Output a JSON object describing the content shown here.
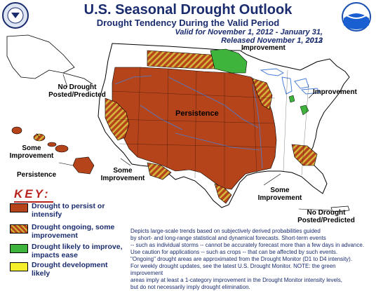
{
  "header": {
    "title": "U.S. Seasonal Drought Outlook",
    "subtitle": "Drought Tendency During the Valid Period",
    "valid_period": "Valid for November 1, 2012 - January 31, 2013",
    "released": "Released November 1, 2012"
  },
  "map_labels": {
    "improvement_north": "Improvement",
    "improvement_east": "Improvement",
    "persistence_center": "Persistence",
    "no_drought_alaska": [
      "No Drought",
      "Posted/Predicted"
    ],
    "some_improvement_hawaii": [
      "Some",
      "Improvement"
    ],
    "persistence_hawaii": "Persistence",
    "some_improvement_southwest": [
      "Some",
      "Improvement"
    ],
    "some_improvement_southeast": [
      "Some",
      "Improvement"
    ],
    "no_drought_puerto_rico": [
      "No Drought",
      "Posted/Predicted"
    ]
  },
  "key": {
    "title": "KEY:",
    "items": [
      {
        "label_lines": [
          "Drought to persist or",
          "intensify"
        ],
        "color": "#b5441a"
      },
      {
        "label_lines": [
          "Drought ongoing, some",
          "improvement"
        ],
        "color": "#b5441a",
        "stripe": "#d4b43a"
      },
      {
        "label_lines": [
          "Drought likely to improve,",
          "impacts ease"
        ],
        "color": "#3fb43c"
      },
      {
        "label_lines": [
          "Drought development",
          "likely"
        ],
        "color": "#f5ee2a"
      }
    ]
  },
  "disclaimer": {
    "lines": [
      "Depicts large-scale trends based on subjectively derived probabilities guided",
      "by short- and long-range statistical and dynamical forecasts. Short-term events",
      "-- such as individual storms -- cannot be accurately forecast more than a few days in advance.",
      "Use caution for applications -- such as crops -- that can be affected by such events.",
      "\"Ongoing\" drought areas are approximated from the Drought Monitor (D1 to D4 intensity).",
      "For weekly drought updates, see the latest U.S. Drought Monitor. NOTE: the green improvement",
      "areas imply at least a 1-category improvement in the Drought Monitor intensity levels,",
      "but do not necessarily imply drought elimination."
    ]
  },
  "colors": {
    "persist": "#b5441a",
    "stripe": "#d4b43a",
    "improve": "#3fb43c",
    "develop": "#f5ee2a",
    "water": "#4a7fd6",
    "text_blue": "#1a2c6e",
    "key_red": "#b8231e"
  },
  "logos": {
    "left": "department-of-commerce-seal",
    "right": "noaa-logo"
  }
}
